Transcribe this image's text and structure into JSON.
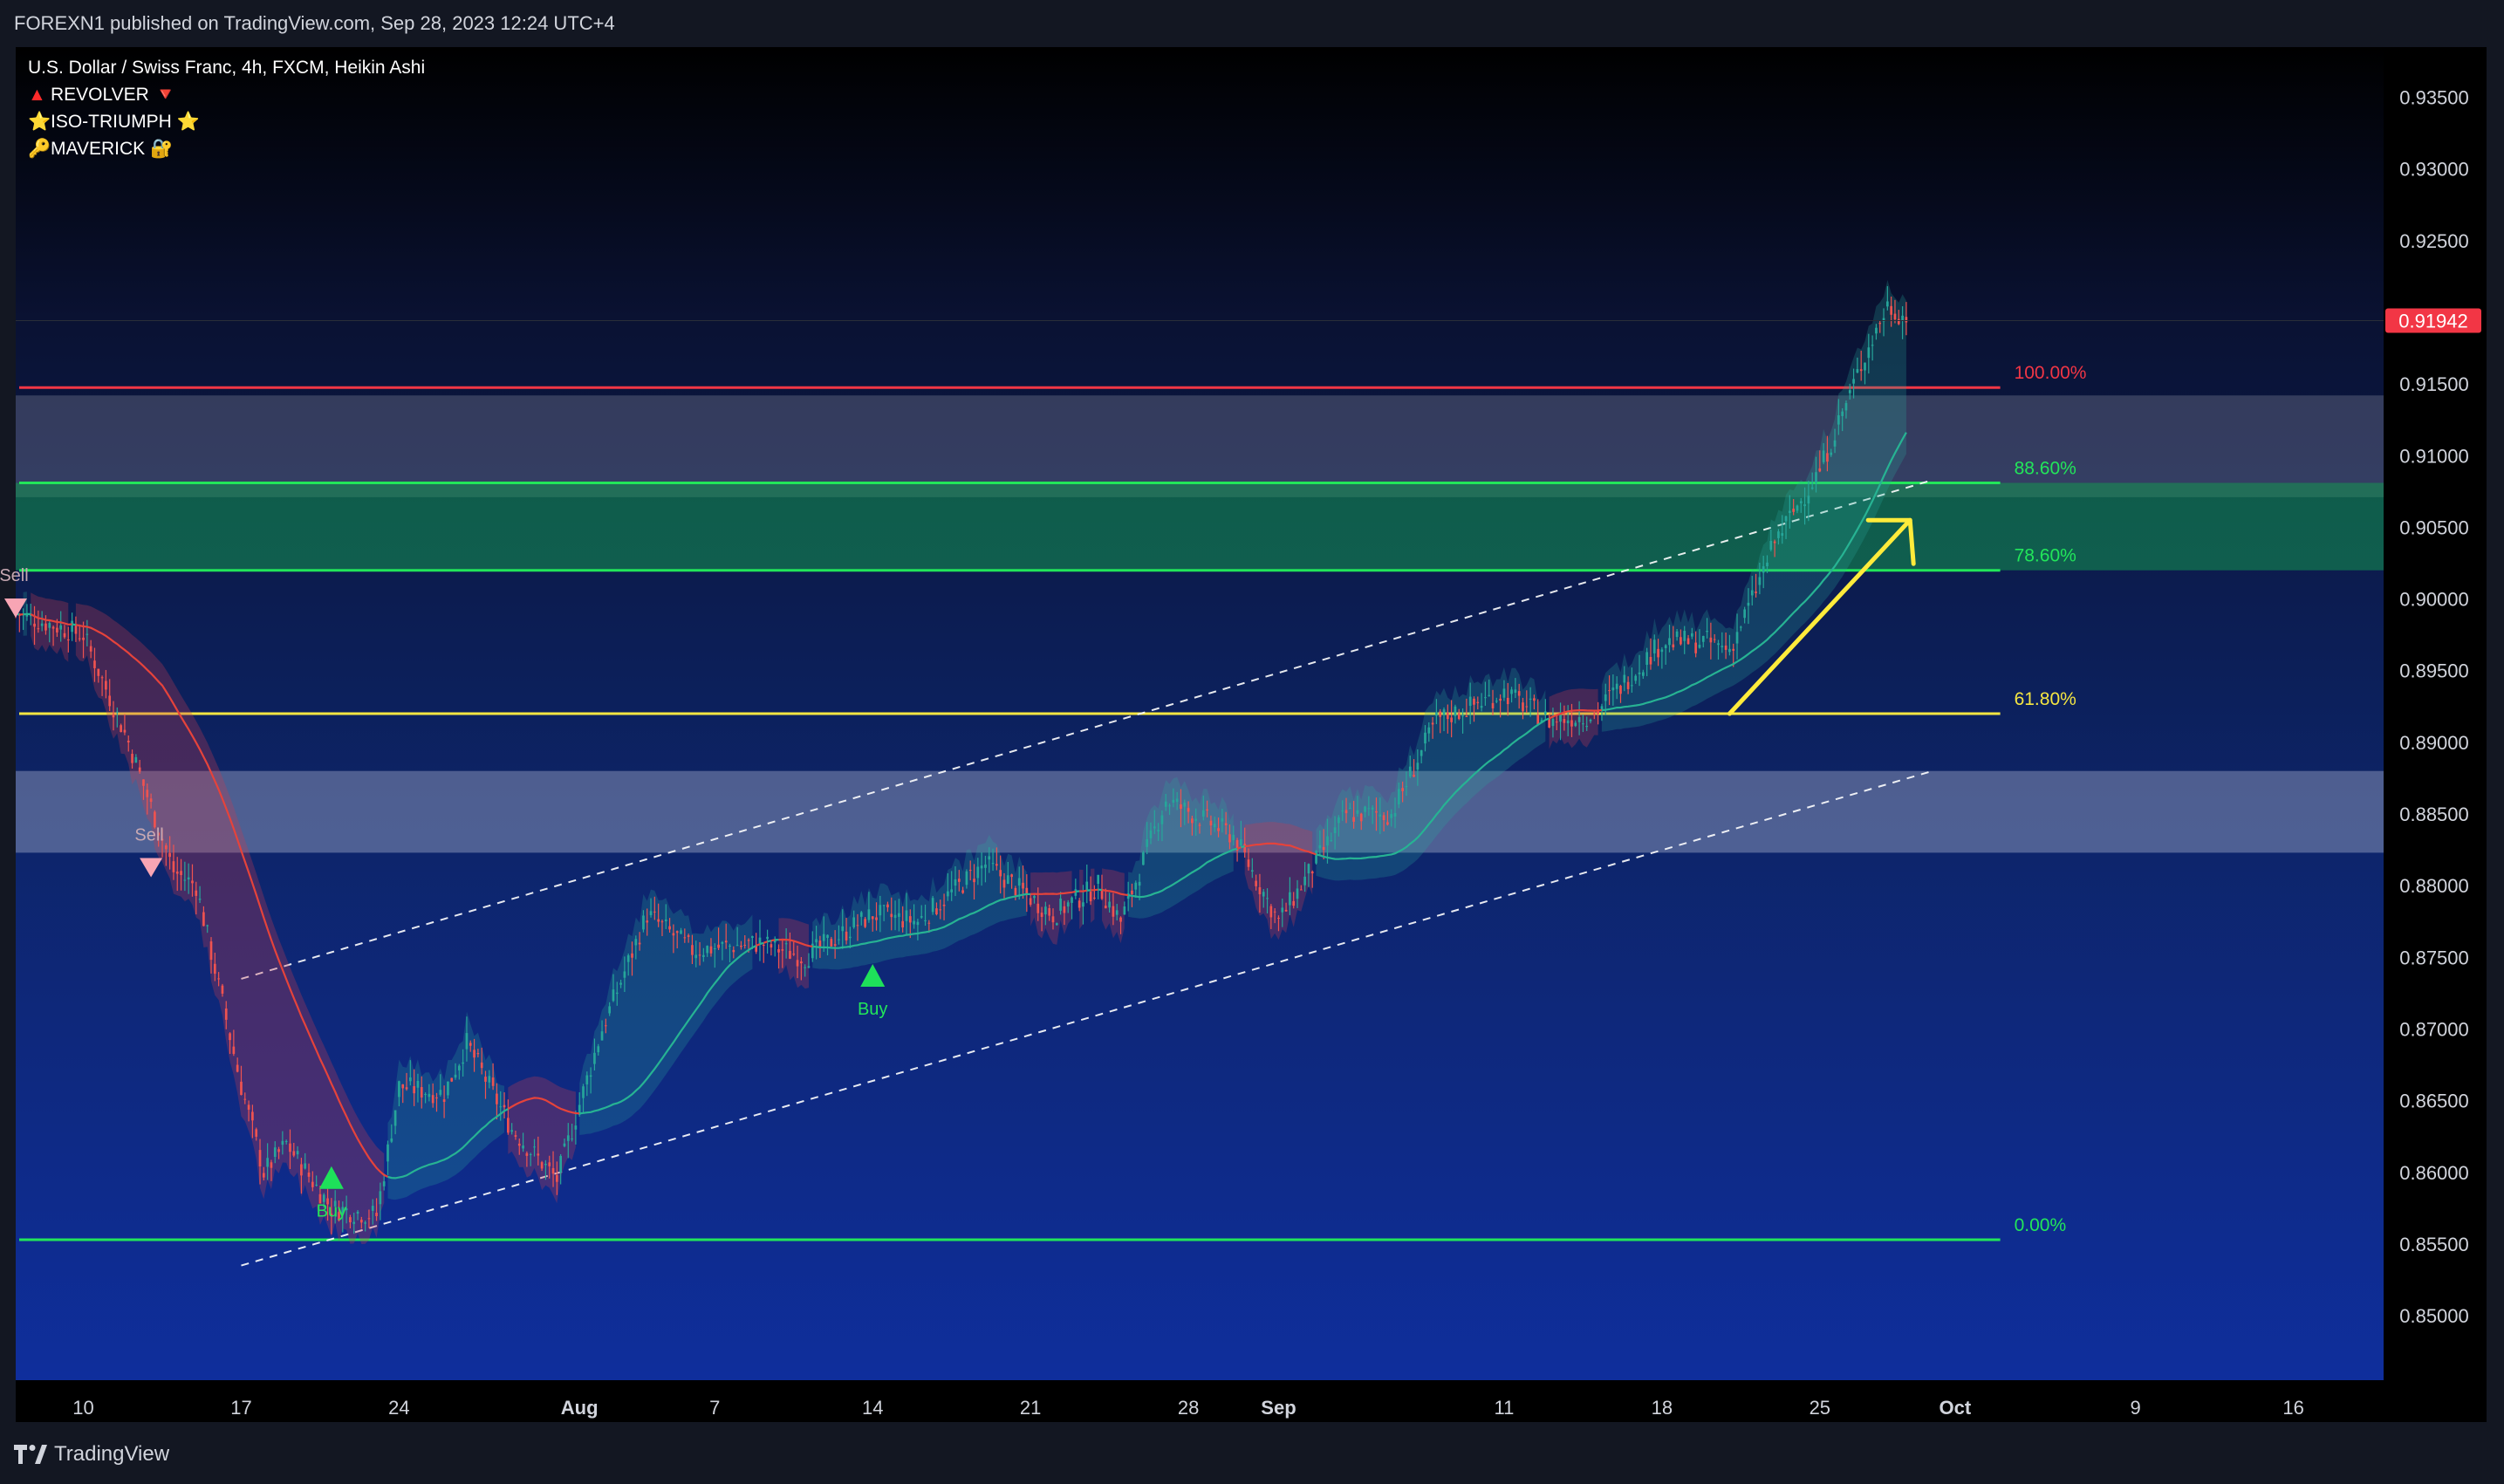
{
  "publisher": "FOREXN1 published on TradingView.com, Sep 28, 2023 12:24 UTC+4",
  "brand": {
    "label": "TradingView",
    "logo_icon": "tradingview-logo-icon"
  },
  "legend": [
    {
      "prefix": "▲",
      "label": "REVOLVER",
      "suffix": "🔻",
      "prefix_color": "#ff2a2a"
    },
    {
      "prefix": "⭐",
      "label": "ISO-TRIUMPH",
      "suffix": "⭐",
      "prefix_color": "#ffd21f"
    },
    {
      "prefix": "🔑",
      "label": "MAVERICK",
      "suffix": "🔐",
      "prefix_color": "#e5b94c"
    }
  ],
  "chart_data": {
    "type": "candlestick",
    "title": "U.S. Dollar / Swiss Franc, 4h, FXCM, Heikin Ashi",
    "ylim": [
      0.8455,
      0.9385
    ],
    "y_ticks": [
      0.935,
      0.93,
      0.925,
      0.915,
      0.91,
      0.905,
      0.9,
      0.895,
      0.89,
      0.885,
      0.88,
      0.875,
      0.87,
      0.865,
      0.86,
      0.855,
      0.85
    ],
    "y_tick_labels": [
      "0.93500",
      "0.93000",
      "0.92500",
      "0.91500",
      "0.91000",
      "0.90500",
      "0.90000",
      "0.89500",
      "0.89000",
      "0.88500",
      "0.88000",
      "0.87500",
      "0.87000",
      "0.86500",
      "0.86000",
      "0.85500",
      "0.85000"
    ],
    "x_range": [
      "2023-07-07",
      "2023-10-20"
    ],
    "x_ticks": [
      {
        "label": "10",
        "date": "2023-07-10",
        "bold": false
      },
      {
        "label": "17",
        "date": "2023-07-17",
        "bold": false
      },
      {
        "label": "24",
        "date": "2023-07-24",
        "bold": false
      },
      {
        "label": "Aug",
        "date": "2023-08-01",
        "bold": true
      },
      {
        "label": "7",
        "date": "2023-08-07",
        "bold": false
      },
      {
        "label": "14",
        "date": "2023-08-14",
        "bold": false
      },
      {
        "label": "21",
        "date": "2023-08-21",
        "bold": false
      },
      {
        "label": "28",
        "date": "2023-08-28",
        "bold": false
      },
      {
        "label": "Sep",
        "date": "2023-09-01",
        "bold": true
      },
      {
        "label": "11",
        "date": "2023-09-11",
        "bold": false
      },
      {
        "label": "18",
        "date": "2023-09-18",
        "bold": false
      },
      {
        "label": "25",
        "date": "2023-09-25",
        "bold": false
      },
      {
        "label": "Oct",
        "date": "2023-10-01",
        "bold": true
      },
      {
        "label": "9",
        "date": "2023-10-09",
        "bold": false
      },
      {
        "label": "16",
        "date": "2023-10-16",
        "bold": false
      }
    ],
    "last_price": {
      "label": "0.91942",
      "value": 0.91942,
      "color": "#f23645"
    },
    "price_path": [
      [
        "2023-07-07",
        0.899
      ],
      [
        "2023-07-10",
        0.8975
      ],
      [
        "2023-07-12",
        0.89
      ],
      [
        "2023-07-14",
        0.881
      ],
      [
        "2023-07-15",
        0.88
      ],
      [
        "2023-07-17",
        0.866
      ],
      [
        "2023-07-18",
        0.86
      ],
      [
        "2023-07-19",
        0.862
      ],
      [
        "2023-07-21",
        0.8575
      ],
      [
        "2023-07-23",
        0.857
      ],
      [
        "2023-07-24",
        0.866
      ],
      [
        "2023-07-26",
        0.8655
      ],
      [
        "2023-07-27",
        0.869
      ],
      [
        "2023-07-29",
        0.863
      ],
      [
        "2023-07-31",
        0.8595
      ],
      [
        "2023-08-02",
        0.87
      ],
      [
        "2023-08-04",
        0.878
      ],
      [
        "2023-08-06",
        0.8755
      ],
      [
        "2023-08-09",
        0.876
      ],
      [
        "2023-08-11",
        0.875
      ],
      [
        "2023-08-14",
        0.878
      ],
      [
        "2023-08-16",
        0.8775
      ],
      [
        "2023-08-19",
        0.8815
      ],
      [
        "2023-08-22",
        0.878
      ],
      [
        "2023-08-24",
        0.88
      ],
      [
        "2023-08-25",
        0.8775
      ],
      [
        "2023-08-27",
        0.886
      ],
      [
        "2023-08-30",
        0.8835
      ],
      [
        "2023-09-01",
        0.8775
      ],
      [
        "2023-09-02",
        0.88
      ],
      [
        "2023-09-04",
        0.885
      ],
      [
        "2023-09-06",
        0.885
      ],
      [
        "2023-09-08",
        0.8915
      ],
      [
        "2023-09-11",
        0.8935
      ],
      [
        "2023-09-13",
        0.8915
      ],
      [
        "2023-09-15",
        0.892
      ],
      [
        "2023-09-18",
        0.897
      ],
      [
        "2023-09-20",
        0.897
      ],
      [
        "2023-09-21",
        0.8965
      ],
      [
        "2023-09-22",
        0.9
      ],
      [
        "2023-09-23",
        0.904
      ],
      [
        "2023-09-25",
        0.909
      ],
      [
        "2023-09-26",
        0.913
      ],
      [
        "2023-09-27",
        0.917
      ],
      [
        "2023-09-28",
        0.9205
      ],
      [
        "2023-09-29",
        0.9194
      ]
    ],
    "fib_levels": [
      {
        "label": "100.00%",
        "value": 0.91475,
        "color": "#f23645"
      },
      {
        "label": "88.60%",
        "value": 0.9081,
        "color": "#22e65a"
      },
      {
        "label": "78.60%",
        "value": 0.902,
        "color": "#22e65a"
      },
      {
        "label": "61.80%",
        "value": 0.892,
        "color": "#f5e642"
      },
      {
        "label": "0.00%",
        "value": 0.8553,
        "color": "#22e65a"
      }
    ],
    "zones": [
      {
        "from": 0.9071,
        "to": 0.9142,
        "color": "rgba(160,160,180,0.28)"
      },
      {
        "from": 0.902,
        "to": 0.9081,
        "color": "rgba(20,150,80,0.55)"
      },
      {
        "from": 0.8823,
        "to": 0.888,
        "color": "rgba(200,205,225,0.35)"
      }
    ],
    "channel": {
      "upper": [
        [
          "2023-07-17",
          0.8735
        ],
        [
          "2023-09-30",
          0.9083
        ]
      ],
      "lower": [
        [
          "2023-07-17",
          0.8535
        ],
        [
          "2023-09-30",
          0.888
        ]
      ]
    },
    "signals": [
      {
        "type": "sell",
        "label": "Sell",
        "date": "2023-07-07",
        "value": 0.8993
      },
      {
        "type": "sell",
        "label": "Sell",
        "date": "2023-07-13",
        "value": 0.8812
      },
      {
        "type": "buy",
        "label": "Buy",
        "date": "2023-07-21",
        "value": 0.8597
      },
      {
        "type": "buy",
        "label": "Buy",
        "date": "2023-08-14",
        "value": 0.8738
      }
    ],
    "arrow": {
      "from": [
        "2023-09-21",
        0.892
      ],
      "to": [
        "2023-09-29",
        0.9055
      ],
      "color": "#ffeb3b"
    },
    "colors": {
      "up": "#26a69a",
      "down": "#ef5350",
      "ma_bear": "#e5433b",
      "ma_bull": "#27b393"
    },
    "grid": false
  }
}
